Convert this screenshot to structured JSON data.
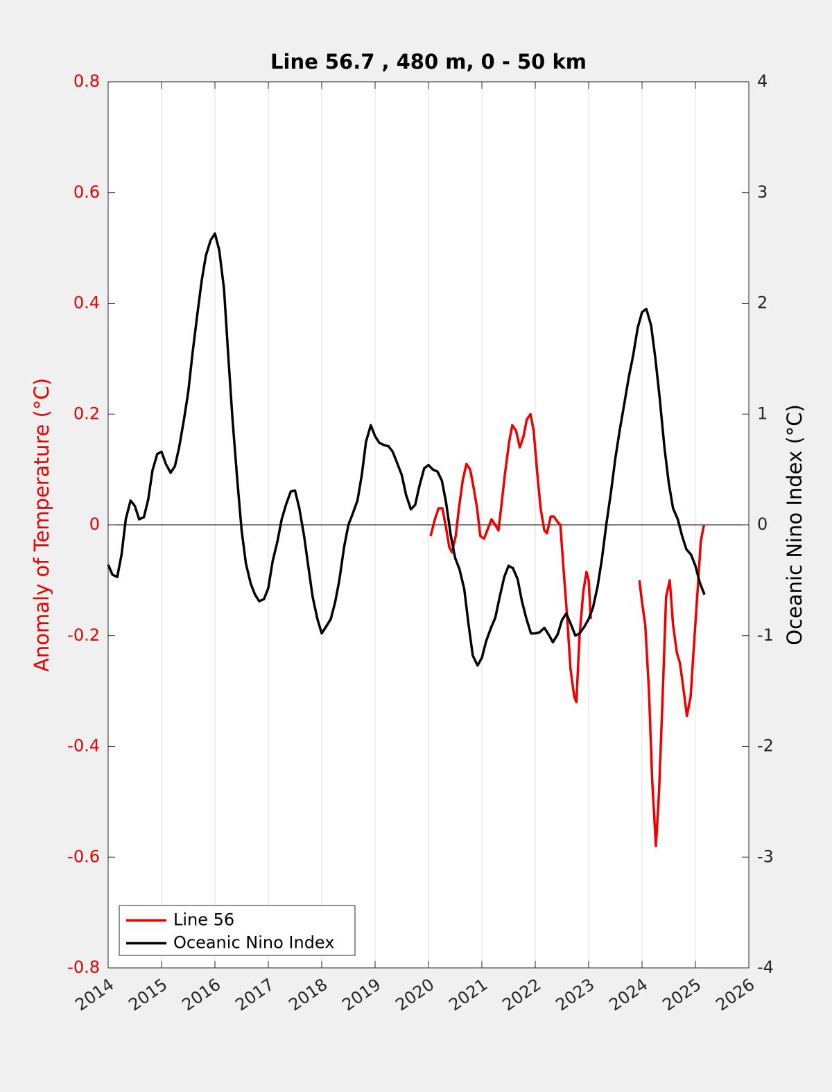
{
  "chart_data": {
    "type": "line",
    "title": "Line 56.7 , 480 m, 0 - 50 km",
    "ylabel": "Anomaly of Temperature (°C)",
    "y2label": "Oceanic Nino Index (°C)",
    "xlim": [
      2014,
      2026
    ],
    "xticks": [
      2014,
      2015,
      2016,
      2017,
      2018,
      2019,
      2020,
      2021,
      2022,
      2023,
      2024,
      2025,
      2026
    ],
    "ylim": [
      -0.8,
      0.8
    ],
    "yticks": [
      -0.8,
      -0.6,
      -0.4,
      -0.2,
      0,
      0.2,
      0.4,
      0.6,
      0.8
    ],
    "y2lim": [
      -4,
      4
    ],
    "y2ticks": [
      -4,
      -3,
      -2,
      -1,
      0,
      1,
      2,
      3,
      4
    ],
    "grid": "x",
    "legend": "lower left",
    "series": [
      {
        "name": "Line 56",
        "color": "#ee0000",
        "axis": "y",
        "x": [
          2020.04,
          2020.12,
          2020.19,
          2020.26,
          2020.32,
          2020.39,
          2020.44,
          2020.51,
          2020.57,
          2020.64,
          2020.71,
          2020.78,
          2020.84,
          2020.91,
          2020.97,
          2021.04,
          2021.1,
          2021.18,
          2021.25,
          2021.31,
          2021.36,
          2021.43,
          2021.51,
          2021.57,
          2021.64,
          2021.71,
          2021.78,
          2021.84,
          2021.91,
          2021.97,
          2022.04,
          2022.1,
          2022.17,
          2022.22,
          2022.29,
          2022.35,
          2022.42,
          2022.47,
          2022.53,
          2022.6,
          2022.66,
          2022.73,
          2022.77,
          2022.83,
          2022.9,
          2022.96,
          2023.0,
          2023.04,
          2023.5,
          2023.95,
          2024.0,
          2024.06,
          2024.13,
          2024.19,
          2024.26,
          2024.32,
          2024.39,
          2024.45,
          2024.52,
          2024.58,
          2024.65,
          2024.71,
          2024.78,
          2024.84,
          2024.91,
          2024.97,
          2025.04,
          2025.1,
          2025.16
        ],
        "values": [
          -0.02,
          0.01,
          0.03,
          0.03,
          0.0,
          -0.04,
          -0.05,
          -0.02,
          0.03,
          0.08,
          0.11,
          0.1,
          0.07,
          0.03,
          -0.02,
          -0.025,
          -0.01,
          0.01,
          0.0,
          -0.01,
          0.03,
          0.09,
          0.15,
          0.18,
          0.17,
          0.14,
          0.16,
          0.19,
          0.2,
          0.17,
          0.09,
          0.03,
          -0.01,
          -0.015,
          0.015,
          0.015,
          0.005,
          0.0,
          -0.08,
          -0.17,
          -0.26,
          -0.31,
          -0.32,
          -0.2,
          -0.12,
          -0.085,
          -0.1,
          -0.17,
          null,
          -0.1,
          -0.14,
          -0.18,
          -0.3,
          -0.46,
          -0.58,
          -0.48,
          -0.3,
          -0.13,
          -0.1,
          -0.18,
          -0.23,
          -0.25,
          -0.3,
          -0.345,
          -0.31,
          -0.22,
          -0.12,
          -0.03,
          0.0
        ]
      },
      {
        "name": "Oceanic Nino Index",
        "color": "#000000",
        "axis": "y2",
        "x": [
          2014.0,
          2014.08,
          2014.17,
          2014.25,
          2014.33,
          2014.42,
          2014.5,
          2014.58,
          2014.67,
          2014.75,
          2014.83,
          2014.92,
          2015.0,
          2015.08,
          2015.17,
          2015.25,
          2015.33,
          2015.42,
          2015.5,
          2015.58,
          2015.67,
          2015.75,
          2015.83,
          2015.92,
          2016.0,
          2016.08,
          2016.17,
          2016.25,
          2016.33,
          2016.42,
          2016.5,
          2016.58,
          2016.67,
          2016.75,
          2016.83,
          2016.92,
          2017.0,
          2017.08,
          2017.17,
          2017.25,
          2017.33,
          2017.42,
          2017.5,
          2017.58,
          2017.67,
          2017.75,
          2017.83,
          2017.92,
          2018.0,
          2018.08,
          2018.17,
          2018.25,
          2018.33,
          2018.42,
          2018.5,
          2018.58,
          2018.67,
          2018.75,
          2018.83,
          2018.92,
          2019.0,
          2019.08,
          2019.17,
          2019.25,
          2019.33,
          2019.42,
          2019.5,
          2019.58,
          2019.67,
          2019.75,
          2019.83,
          2019.92,
          2020.0,
          2020.08,
          2020.17,
          2020.25,
          2020.33,
          2020.42,
          2020.5,
          2020.58,
          2020.67,
          2020.75,
          2020.83,
          2020.92,
          2021.0,
          2021.08,
          2021.17,
          2021.25,
          2021.33,
          2021.42,
          2021.5,
          2021.58,
          2021.67,
          2021.75,
          2021.83,
          2021.92,
          2022.0,
          2022.08,
          2022.17,
          2022.25,
          2022.33,
          2022.42,
          2022.5,
          2022.58,
          2022.67,
          2022.75,
          2022.83,
          2022.92,
          2023.0,
          2023.08,
          2023.17,
          2023.25,
          2023.33,
          2023.42,
          2023.5,
          2023.58,
          2023.67,
          2023.75,
          2023.83,
          2023.92,
          2024.0,
          2024.08,
          2024.17,
          2024.25,
          2024.33,
          2024.42,
          2024.5,
          2024.58,
          2024.67,
          2024.75,
          2024.83,
          2024.92,
          2025.0,
          2025.08,
          2025.17
        ],
        "values": [
          -0.36,
          -0.45,
          -0.47,
          -0.27,
          0.05,
          0.22,
          0.17,
          0.05,
          0.07,
          0.23,
          0.49,
          0.64,
          0.66,
          0.55,
          0.47,
          0.53,
          0.7,
          0.95,
          1.2,
          1.55,
          1.9,
          2.2,
          2.43,
          2.57,
          2.63,
          2.48,
          2.13,
          1.52,
          0.95,
          0.4,
          -0.05,
          -0.35,
          -0.53,
          -0.63,
          -0.69,
          -0.67,
          -0.57,
          -0.33,
          -0.15,
          0.05,
          0.18,
          0.3,
          0.31,
          0.15,
          -0.1,
          -0.38,
          -0.65,
          -0.85,
          -0.98,
          -0.92,
          -0.85,
          -0.7,
          -0.5,
          -0.2,
          0.0,
          0.1,
          0.22,
          0.45,
          0.75,
          0.9,
          0.8,
          0.74,
          0.72,
          0.71,
          0.66,
          0.55,
          0.45,
          0.27,
          0.14,
          0.18,
          0.35,
          0.51,
          0.54,
          0.5,
          0.48,
          0.4,
          0.2,
          -0.1,
          -0.3,
          -0.4,
          -0.58,
          -0.9,
          -1.18,
          -1.27,
          -1.2,
          -1.05,
          -0.93,
          -0.84,
          -0.66,
          -0.47,
          -0.37,
          -0.39,
          -0.49,
          -0.69,
          -0.84,
          -0.98,
          -0.98,
          -0.97,
          -0.93,
          -0.99,
          -1.06,
          -0.99,
          -0.86,
          -0.8,
          -0.9,
          -1.0,
          -0.98,
          -0.92,
          -0.85,
          -0.75,
          -0.55,
          -0.3,
          0.0,
          0.3,
          0.6,
          0.85,
          1.1,
          1.33,
          1.52,
          1.78,
          1.92,
          1.95,
          1.8,
          1.5,
          1.15,
          0.7,
          0.38,
          0.15,
          0.05,
          -0.1,
          -0.22,
          -0.27,
          -0.37,
          -0.52,
          -0.63
        ]
      }
    ]
  }
}
